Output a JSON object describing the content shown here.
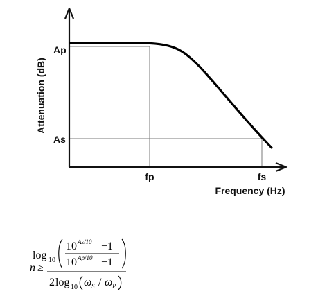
{
  "diagram": {
    "y_axis_title": "Attenuation (dB)",
    "x_axis_title": "Frequency (Hz)",
    "y_tick_ap": "Ap",
    "y_tick_as": "As",
    "x_tick_fp": "fp",
    "x_tick_fs": "fs",
    "curve": "low-pass attenuation response: flat at Ap up to fp, rolling off to As at fs"
  },
  "formula": {
    "lhs_var": "n",
    "relation": "≥",
    "log_fn": "log",
    "log_base": "10",
    "num_base_top": "10",
    "num_exp_top": "As/10",
    "minus_one": "−1",
    "num_base_bottom": "10",
    "num_exp_bottom": "Ap/10",
    "den_coef": "2",
    "den_omega_s": "ω",
    "den_sub_s": "S",
    "den_slash": "/",
    "den_omega_p": "ω",
    "den_sub_p": "P"
  },
  "colors": {
    "axis": "#111111",
    "curve": "#000000",
    "guide": "#7a7a7a",
    "text": "#111111"
  }
}
